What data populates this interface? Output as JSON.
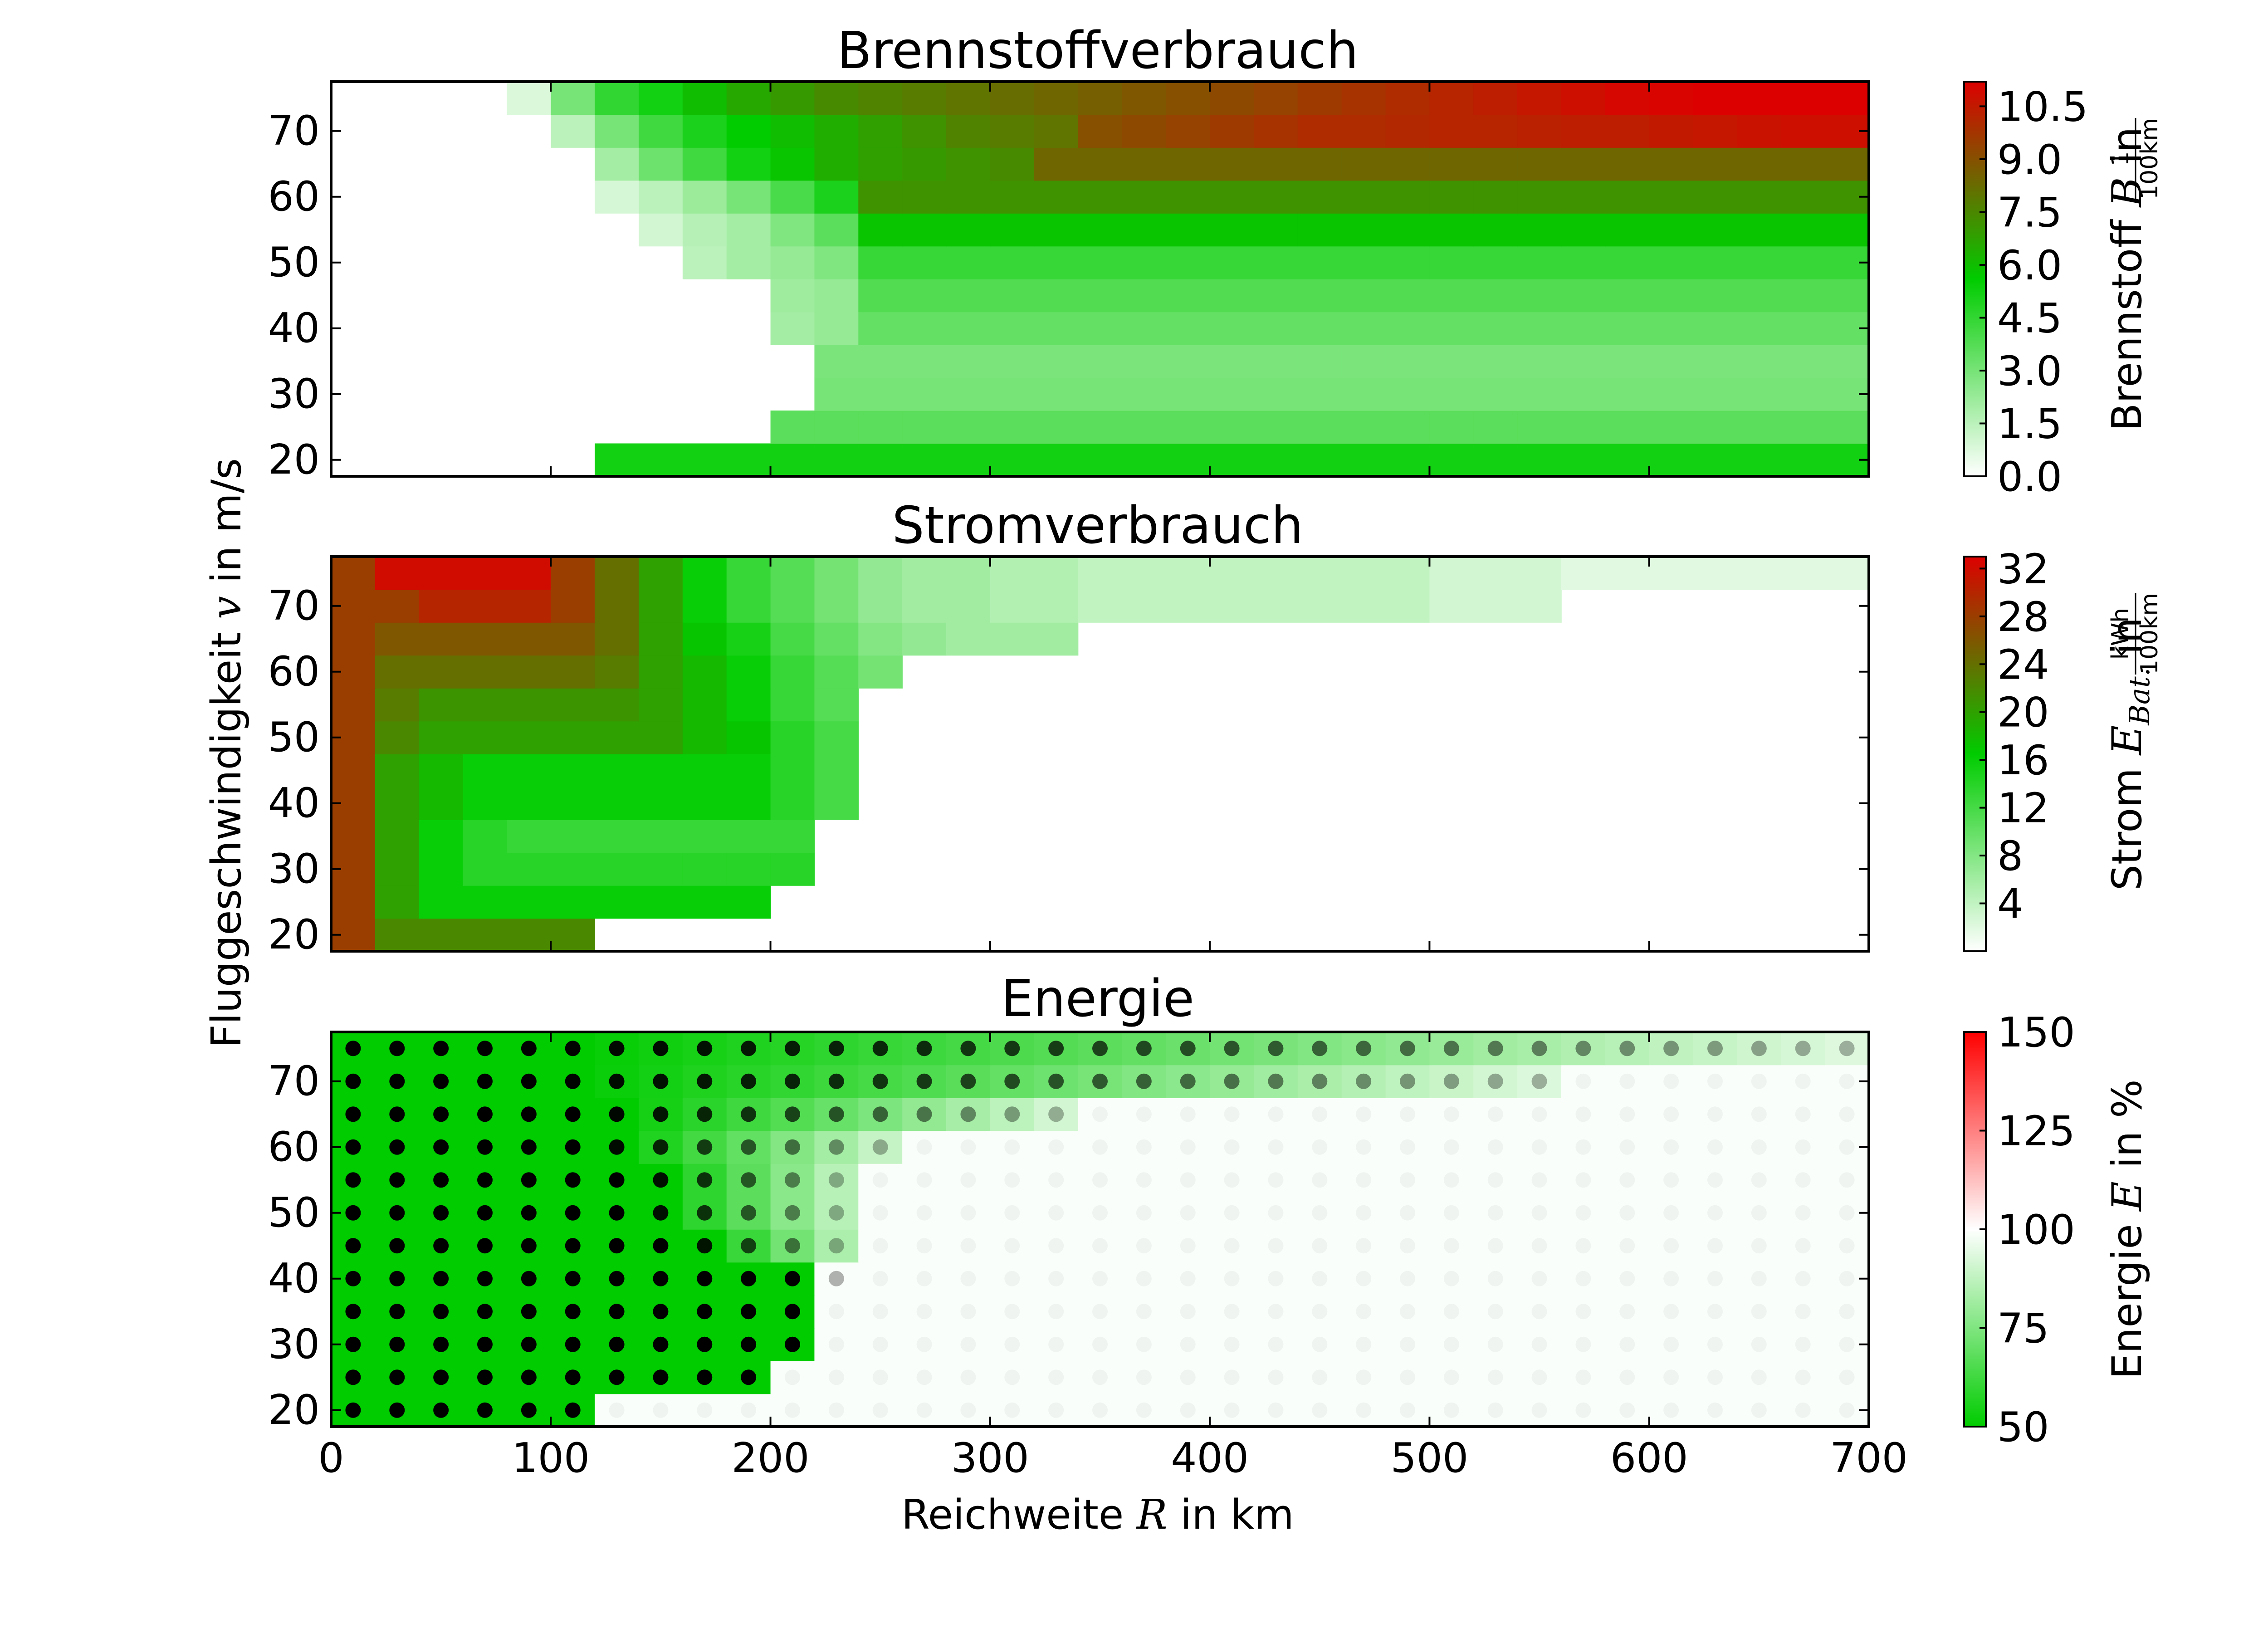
{
  "figure": {
    "ylabel": "Fluggeschwindigkeit",
    "ylabel_sym": "v",
    "ylabel_unit": "in m/s",
    "xlabel": "Reichweite",
    "xlabel_sym": "R",
    "xlabel_unit": "in km"
  },
  "chart_data": [
    {
      "type": "heatmap",
      "title": "Brennstoffverbrauch",
      "x_ticks": [
        "0",
        "100",
        "200",
        "300",
        "400",
        "500",
        "600",
        "700"
      ],
      "y_ticks": [
        "20",
        "30",
        "40",
        "50",
        "60",
        "70"
      ],
      "xlim": [
        0,
        700
      ],
      "ylim": [
        17.5,
        77.5
      ],
      "x_centers": [
        10,
        30,
        50,
        70,
        90,
        110,
        130,
        150,
        170,
        190,
        210,
        230,
        250,
        270,
        290,
        310,
        330,
        350,
        370,
        390,
        410,
        430,
        450,
        470,
        490,
        510,
        530,
        550,
        570,
        590,
        610,
        630,
        650,
        670,
        690
      ],
      "y_centers": [
        20,
        25,
        30,
        35,
        40,
        45,
        50,
        55,
        60,
        65,
        70,
        75
      ],
      "regions": [
        {
          "v": 20,
          "from": 120,
          "to": 700,
          "values": [
            5.2
          ]
        },
        {
          "v": 25,
          "from": 200,
          "to": 700,
          "values": [
            3.6
          ]
        },
        {
          "v": 30,
          "from": 220,
          "to": 700,
          "values": [
            3.0
          ]
        },
        {
          "v": 35,
          "from": 220,
          "to": 700,
          "values": [
            2.9
          ]
        },
        {
          "v": 40,
          "from": 200,
          "to": 700,
          "values": [
            2.0,
            2.3,
            3.4
          ]
        },
        {
          "v": 45,
          "from": 200,
          "to": 700,
          "values": [
            2.1,
            2.3,
            3.8
          ]
        },
        {
          "v": 50,
          "from": 160,
          "to": 700,
          "values": [
            1.5,
            2.0,
            2.3,
            2.8,
            4.4
          ]
        },
        {
          "v": 55,
          "from": 140,
          "to": 700,
          "values": [
            1.0,
            1.6,
            2.0,
            2.8,
            3.6,
            5.8
          ]
        },
        {
          "v": 60,
          "from": 120,
          "to": 700,
          "values": [
            0.9,
            1.5,
            2.2,
            3.0,
            4.0,
            5.0,
            7.2
          ]
        },
        {
          "v": 65,
          "from": 120,
          "to": 700,
          "values": [
            2.0,
            3.2,
            4.2,
            5.2,
            5.8,
            6.4,
            6.8,
            7.0,
            7.2,
            7.4,
            8.4
          ]
        },
        {
          "v": 70,
          "from": 100,
          "to": 700,
          "values": [
            1.5,
            3.0,
            4.2,
            5.0,
            5.6,
            6.0,
            6.4,
            6.8,
            7.2,
            7.6,
            7.8,
            8.0,
            9.0,
            9.2,
            9.4,
            9.6,
            9.8,
            10.0,
            10.0,
            10.1,
            10.2,
            10.2,
            10.3,
            10.4,
            10.4,
            10.5,
            10.6,
            10.7,
            10.8,
            10.8
          ]
        },
        {
          "v": 75,
          "from": 80,
          "to": 700,
          "values": [
            0.8,
            3.0,
            4.5,
            5.2,
            6.0,
            6.6,
            7.0,
            7.4,
            7.6,
            7.8,
            8.0,
            8.2,
            8.4,
            8.6,
            8.8,
            9.0,
            9.2,
            9.4,
            9.6,
            9.8,
            10.0,
            10.2,
            10.4,
            10.6,
            10.8,
            11.0,
            11.1,
            11.2,
            11.2,
            11.2,
            11.2
          ]
        }
      ],
      "colorbar": {
        "label": "Brennstoff",
        "label_sym": "B",
        "label_unit": "in",
        "unit_num": "1",
        "unit_den": "100km",
        "ticks": [
          "0.0",
          "1.5",
          "3.0",
          "4.5",
          "6.0",
          "7.5",
          "9.0",
          "10.5"
        ],
        "min": 0,
        "max": 11.2,
        "colors": [
          "#ffffff",
          "#00cc00",
          "#dd0000"
        ]
      }
    },
    {
      "type": "heatmap",
      "title": "Stromverbrauch",
      "x_ticks": [
        "0",
        "100",
        "200",
        "300",
        "400",
        "500",
        "600",
        "700"
      ],
      "y_ticks": [
        "20",
        "30",
        "40",
        "50",
        "60",
        "70"
      ],
      "xlim": [
        0,
        700
      ],
      "ylim": [
        17.5,
        77.5
      ],
      "x_centers": [
        10,
        30,
        50,
        70,
        90,
        110,
        130,
        150,
        170,
        190,
        210,
        230,
        250,
        270,
        290,
        310,
        330,
        350,
        370,
        390,
        410,
        430,
        450,
        470,
        490,
        510,
        530,
        550,
        570,
        590,
        610,
        630,
        650,
        670,
        690
      ],
      "y_centers": [
        20,
        25,
        30,
        35,
        40,
        45,
        50,
        55,
        60,
        65,
        70,
        75
      ],
      "regions": [
        {
          "v": 20,
          "from": 0,
          "to": 120,
          "values": [
            28,
            22,
            22,
            22,
            22,
            22
          ]
        },
        {
          "v": 25,
          "from": 0,
          "to": 200,
          "values": [
            28,
            20,
            16,
            16,
            16,
            16,
            16,
            16,
            16,
            16
          ]
        },
        {
          "v": 30,
          "from": 0,
          "to": 220,
          "values": [
            28,
            20,
            16,
            14,
            14,
            14,
            14,
            14,
            14,
            14,
            14
          ]
        },
        {
          "v": 35,
          "from": 0,
          "to": 220,
          "values": [
            28,
            20,
            16,
            14,
            13,
            13,
            13,
            13,
            13,
            13,
            13
          ]
        },
        {
          "v": 40,
          "from": 0,
          "to": 240,
          "values": [
            28,
            20,
            18,
            16,
            16,
            16,
            16,
            16,
            16,
            16,
            14,
            12
          ]
        },
        {
          "v": 45,
          "from": 0,
          "to": 240,
          "values": [
            28,
            20,
            18,
            16,
            16,
            16,
            16,
            16,
            16,
            16,
            14,
            12
          ]
        },
        {
          "v": 50,
          "from": 0,
          "to": 240,
          "values": [
            28,
            22,
            20,
            20,
            20,
            20,
            20,
            20,
            18,
            17,
            14,
            12
          ]
        },
        {
          "v": 55,
          "from": 0,
          "to": 240,
          "values": [
            28,
            23,
            21,
            21,
            21,
            21,
            21,
            20,
            18,
            16,
            13,
            11
          ]
        },
        {
          "v": 60,
          "from": 0,
          "to": 260,
          "values": [
            28,
            24,
            24,
            24,
            24,
            24,
            23,
            20,
            18,
            16,
            13,
            11,
            9
          ]
        },
        {
          "v": 65,
          "from": 0,
          "to": 340,
          "values": [
            28,
            26,
            26,
            26,
            26,
            26,
            24,
            20,
            17,
            15,
            12,
            10,
            8,
            7,
            6,
            6,
            6
          ]
        },
        {
          "v": 70,
          "from": 0,
          "to": 560,
          "values": [
            28,
            28,
            30,
            30,
            30,
            28,
            24,
            20,
            16,
            13,
            11,
            9,
            7,
            6,
            6,
            5,
            5,
            4,
            4,
            4,
            4,
            4,
            4,
            4,
            4,
            3,
            3,
            3
          ]
        },
        {
          "v": 75,
          "from": 0,
          "to": 700,
          "values": [
            28,
            32,
            32,
            32,
            32,
            28,
            24,
            20,
            16,
            13,
            11,
            9,
            7,
            6,
            6,
            5,
            5,
            4,
            4,
            4,
            4,
            4,
            4,
            4,
            4,
            3,
            3,
            3,
            2,
            2,
            2,
            2,
            2,
            2,
            2
          ]
        }
      ],
      "colorbar": {
        "label": "Strom",
        "label_sym": "E",
        "label_sub": "Bat.",
        "label_unit": "in",
        "unit_num": "kWh",
        "unit_den": "100km",
        "ticks": [
          "4",
          "8",
          "12",
          "16",
          "20",
          "24",
          "28",
          "32"
        ],
        "min": 0,
        "max": 33,
        "colors": [
          "#ffffff",
          "#00cc00",
          "#dd0000"
        ]
      }
    },
    {
      "type": "heatmap",
      "title": "Energie",
      "x_ticks": [
        "0",
        "100",
        "200",
        "300",
        "400",
        "500",
        "600",
        "700"
      ],
      "y_ticks": [
        "20",
        "30",
        "40",
        "50",
        "60",
        "70"
      ],
      "xlim": [
        0,
        700
      ],
      "ylim": [
        17.5,
        77.5
      ],
      "x_centers": [
        10,
        30,
        50,
        70,
        90,
        110,
        130,
        150,
        170,
        190,
        210,
        230,
        250,
        270,
        290,
        310,
        330,
        350,
        370,
        390,
        410,
        430,
        450,
        470,
        490,
        510,
        530,
        550,
        570,
        590,
        610,
        630,
        650,
        670,
        690
      ],
      "y_centers": [
        20,
        25,
        30,
        35,
        40,
        45,
        50,
        55,
        60,
        65,
        70,
        75
      ],
      "rows": [
        {
          "v": 20,
          "green_to": 120,
          "fade_to": 120,
          "dots_to": 110
        },
        {
          "v": 25,
          "green_to": 200,
          "fade_to": 200,
          "dots_to": 190
        },
        {
          "v": 30,
          "green_to": 220,
          "fade_to": 220,
          "dots_to": 210
        },
        {
          "v": 35,
          "green_to": 220,
          "fade_to": 220,
          "dots_to": 210
        },
        {
          "v": 40,
          "green_to": 220,
          "fade_to": 220,
          "dots_to": 230
        },
        {
          "v": 45,
          "green_to": 160,
          "fade_to": 240,
          "dots_to": 230
        },
        {
          "v": 50,
          "green_to": 140,
          "fade_to": 240,
          "dots_to": 230
        },
        {
          "v": 55,
          "green_to": 140,
          "fade_to": 240,
          "dots_to": 230
        },
        {
          "v": 60,
          "green_to": 120,
          "fade_to": 260,
          "dots_to": 250
        },
        {
          "v": 65,
          "green_to": 120,
          "fade_to": 340,
          "dots_to": 330
        },
        {
          "v": 70,
          "green_to": 100,
          "fade_to": 560,
          "dots_to": 550
        },
        {
          "v": 75,
          "green_to": 100,
          "fade_to": 700,
          "dots_to": 690
        }
      ],
      "colorbar": {
        "label": "Energie",
        "label_sym": "E",
        "label_unit": "in %",
        "ticks": [
          "50",
          "75",
          "100",
          "125",
          "150"
        ],
        "min": 50,
        "max": 150,
        "colors": [
          "#00cc00",
          "#ffffff",
          "#ff0000"
        ]
      }
    }
  ]
}
